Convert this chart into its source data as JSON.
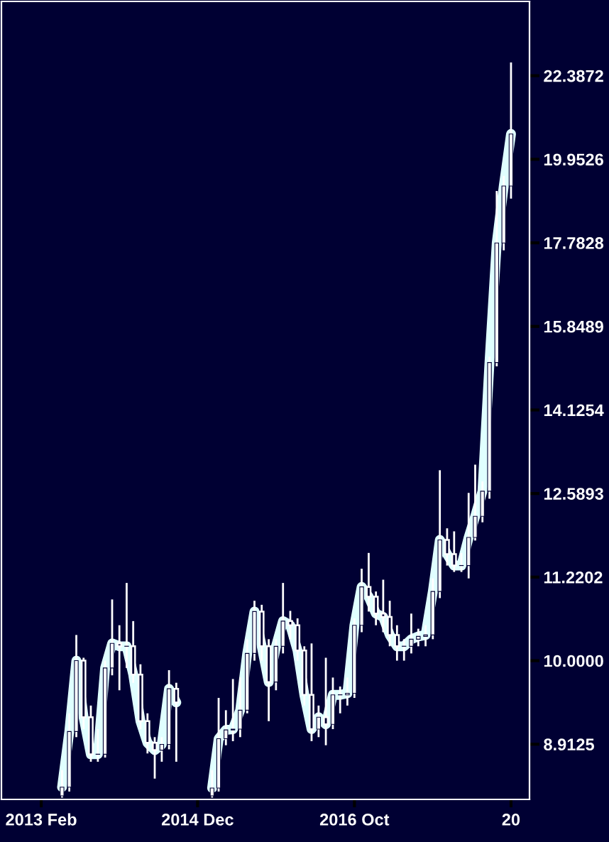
{
  "chart_data": {
    "type": "candlestick",
    "log": true,
    "grid": false,
    "x": [
      "2013-05",
      "2013-06",
      "2013-07",
      "2013-08",
      "2013-09",
      "2013-10",
      "2013-11",
      "2013-12",
      "2014-01",
      "2014-02",
      "2014-03",
      "2014-04",
      "2014-05",
      "2014-06",
      "2014-07",
      "2014-08",
      "2014-09",
      "2014-10",
      "2014-11",
      "2014-12",
      "2015-01",
      "2015-02",
      "2015-03",
      "2015-04",
      "2015-05",
      "2015-06",
      "2015-07",
      "2015-08",
      "2015-09",
      "2015-10",
      "2015-11",
      "2015-12",
      "2016-01",
      "2016-02",
      "2016-03",
      "2016-04",
      "2016-05",
      "2016-06",
      "2016-07",
      "2016-08",
      "2016-09",
      "2016-10",
      "2016-11",
      "2016-12",
      "2017-01",
      "2017-02",
      "2017-03",
      "2017-04",
      "2017-05",
      "2017-06",
      "2017-07",
      "2017-08",
      "2017-09",
      "2017-10",
      "2017-11",
      "2017-12",
      "2018-01",
      "2018-02",
      "2018-03",
      "2018-04",
      "2018-05",
      "2018-06",
      "2018-07",
      "2018-08"
    ],
    "series": [
      {
        "type": "candlestick",
        "color": "#ffffff",
        "ohlc": [
          [
            8.3,
            8.6,
            8.28,
            8.4
          ],
          [
            8.4,
            9.3,
            8.35,
            9.07
          ],
          [
            9.07,
            10.36,
            9.0,
            10.0
          ],
          [
            10.0,
            10.04,
            9.1,
            9.25
          ],
          [
            9.25,
            9.4,
            8.7,
            8.79
          ],
          [
            8.79,
            9.1,
            8.7,
            8.79
          ],
          [
            8.79,
            10.0,
            8.75,
            9.9
          ],
          [
            9.9,
            10.88,
            9.8,
            10.24
          ],
          [
            10.24,
            10.5,
            9.6,
            10.2
          ],
          [
            10.2,
            11.13,
            9.9,
            10.2
          ],
          [
            10.2,
            10.56,
            9.7,
            9.81
          ],
          [
            9.81,
            9.95,
            9.1,
            9.2
          ],
          [
            9.2,
            9.3,
            8.8,
            8.93
          ],
          [
            8.93,
            9.0,
            8.5,
            8.84
          ],
          [
            8.84,
            9.0,
            8.7,
            8.91
          ],
          [
            8.91,
            9.87,
            8.85,
            9.62
          ],
          [
            9.62,
            9.7,
            8.7,
            9.44
          ],
          null,
          null,
          null,
          null,
          [
            8.3,
            8.6,
            8.28,
            8.39
          ],
          [
            8.39,
            9.5,
            8.35,
            8.98
          ],
          [
            8.98,
            9.34,
            8.9,
            9.09
          ],
          [
            9.09,
            9.75,
            8.95,
            9.1
          ],
          [
            9.1,
            9.77,
            9.0,
            9.34
          ],
          [
            9.34,
            10.3,
            9.3,
            10.1
          ],
          [
            10.1,
            10.86,
            10.0,
            10.7
          ],
          [
            10.7,
            10.8,
            10.0,
            10.2
          ],
          [
            10.2,
            10.3,
            9.2,
            9.71
          ],
          [
            9.71,
            10.3,
            9.6,
            10.2
          ],
          [
            10.2,
            11.13,
            10.1,
            10.56
          ],
          [
            10.56,
            10.71,
            10.3,
            10.5
          ],
          [
            10.5,
            10.6,
            10.0,
            10.14
          ],
          [
            10.14,
            10.2,
            9.4,
            9.54
          ],
          [
            9.54,
            10.24,
            8.95,
            9.1
          ],
          [
            9.1,
            9.4,
            9.0,
            9.25
          ],
          [
            9.25,
            10.04,
            8.9,
            9.16
          ],
          [
            9.16,
            9.77,
            9.1,
            9.54
          ],
          [
            9.54,
            9.65,
            9.3,
            9.54
          ],
          [
            9.54,
            9.77,
            9.4,
            9.56
          ],
          [
            9.56,
            10.6,
            9.5,
            10.5
          ],
          [
            10.5,
            11.35,
            10.4,
            11.07
          ],
          [
            11.07,
            11.6,
            10.7,
            10.92
          ],
          [
            10.92,
            11.0,
            10.5,
            10.67
          ],
          [
            10.67,
            11.18,
            10.4,
            10.62
          ],
          [
            10.62,
            10.86,
            10.2,
            10.36
          ],
          [
            10.36,
            10.5,
            10.0,
            10.2
          ],
          [
            10.2,
            10.3,
            10.0,
            10.2
          ],
          [
            10.2,
            10.67,
            10.1,
            10.3
          ],
          [
            10.3,
            10.45,
            10.2,
            10.34
          ],
          [
            10.34,
            10.5,
            10.2,
            10.36
          ],
          [
            10.36,
            11.2,
            10.3,
            11.0
          ],
          [
            11.0,
            13.0,
            10.9,
            11.81
          ],
          [
            11.81,
            12.0,
            11.4,
            11.58
          ],
          [
            11.58,
            11.95,
            11.3,
            11.4
          ],
          [
            11.4,
            11.6,
            11.3,
            11.4
          ],
          [
            11.4,
            12.6,
            11.2,
            11.85
          ],
          [
            11.85,
            13.1,
            11.8,
            12.2
          ],
          [
            12.2,
            12.8,
            12.1,
            12.63
          ],
          [
            12.63,
            15.2,
            12.5,
            15.08
          ],
          [
            15.08,
            19.1,
            15.0,
            17.78
          ],
          [
            17.78,
            19.5,
            17.6,
            19.23
          ],
          [
            19.23,
            22.8,
            18.9,
            20.66
          ]
        ]
      },
      {
        "type": "line",
        "color": "#e0ffff",
        "values": [
          8.4,
          9.07,
          10.0,
          9.25,
          8.79,
          8.79,
          9.9,
          10.24,
          10.2,
          10.2,
          9.81,
          9.2,
          8.93,
          8.84,
          8.91,
          9.62,
          9.44,
          null,
          null,
          null,
          null,
          8.39,
          8.98,
          9.09,
          9.1,
          9.34,
          10.1,
          10.7,
          10.2,
          9.71,
          10.2,
          10.56,
          10.5,
          10.14,
          9.54,
          9.1,
          9.25,
          9.16,
          9.54,
          9.54,
          9.56,
          10.5,
          11.07,
          10.92,
          10.67,
          10.62,
          10.36,
          10.2,
          10.2,
          10.3,
          10.34,
          10.36,
          11.0,
          11.81,
          11.58,
          11.4,
          11.4,
          11.85,
          12.2,
          12.63,
          15.08,
          17.78,
          19.23,
          20.66
        ]
      }
    ],
    "xlim": [
      "2012-08-15",
      "2018-10-19"
    ],
    "xticks": [
      {
        "value": "2013-02",
        "label": "2013 Feb"
      },
      {
        "value": "2014-12",
        "label": "2014 Dec"
      },
      {
        "value": "2016-10",
        "label": "2016 Oct"
      },
      {
        "value": "2018-08",
        "label": "20"
      }
    ],
    "ylim": [
      8.26,
      24.8
    ],
    "yticks": [
      8.9125,
      {
        "value": 10.0,
        "label": "10.0000"
      },
      11.2202,
      12.5893,
      14.1254,
      15.8489,
      17.7828,
      19.9526,
      22.3872
    ]
  }
}
